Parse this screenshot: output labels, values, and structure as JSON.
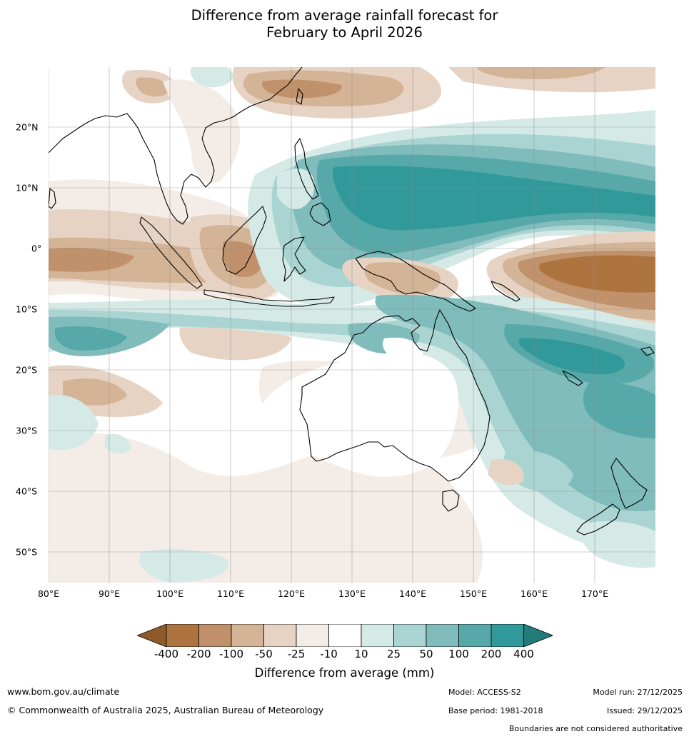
{
  "title": {
    "line1": "Difference from average rainfall forecast for",
    "line2": "February to April 2026"
  },
  "map": {
    "longitude_labels": [
      "80°E",
      "90°E",
      "100°E",
      "110°E",
      "120°E",
      "130°E",
      "140°E",
      "150°E",
      "160°E",
      "170°E"
    ],
    "latitude_labels": [
      "20°N",
      "10°N",
      "0°",
      "10°S",
      "20°S",
      "30°S",
      "40°S",
      "50°S"
    ]
  },
  "legend": {
    "title": "Difference from average (mm)",
    "ticks": [
      "-400",
      "-200",
      "-100",
      "-50",
      "-25",
      "-10",
      "10",
      "25",
      "50",
      "100",
      "200",
      "400"
    ],
    "colors": [
      "#8f5a2a",
      "#ad7440",
      "#c0916a",
      "#d4b496",
      "#e6d3c3",
      "#f3ece7",
      "#ffffff",
      "#d5e9e7",
      "#a9d4d2",
      "#7fbcbb",
      "#56a9a8",
      "#31999a",
      "#237b7a"
    ]
  },
  "footer": {
    "website": "www.bom.gov.au/climate",
    "copyright": "© Commonwealth of Australia 2025, Australian Bureau of Meteorology",
    "model": "Model: ACCESS-S2",
    "base_period": "Base period: 1981-2018",
    "model_run": "Model run: 27/12/2025",
    "issued": "Issued: 29/12/2025",
    "disclaimer": "Boundaries are not considered authoritative"
  }
}
